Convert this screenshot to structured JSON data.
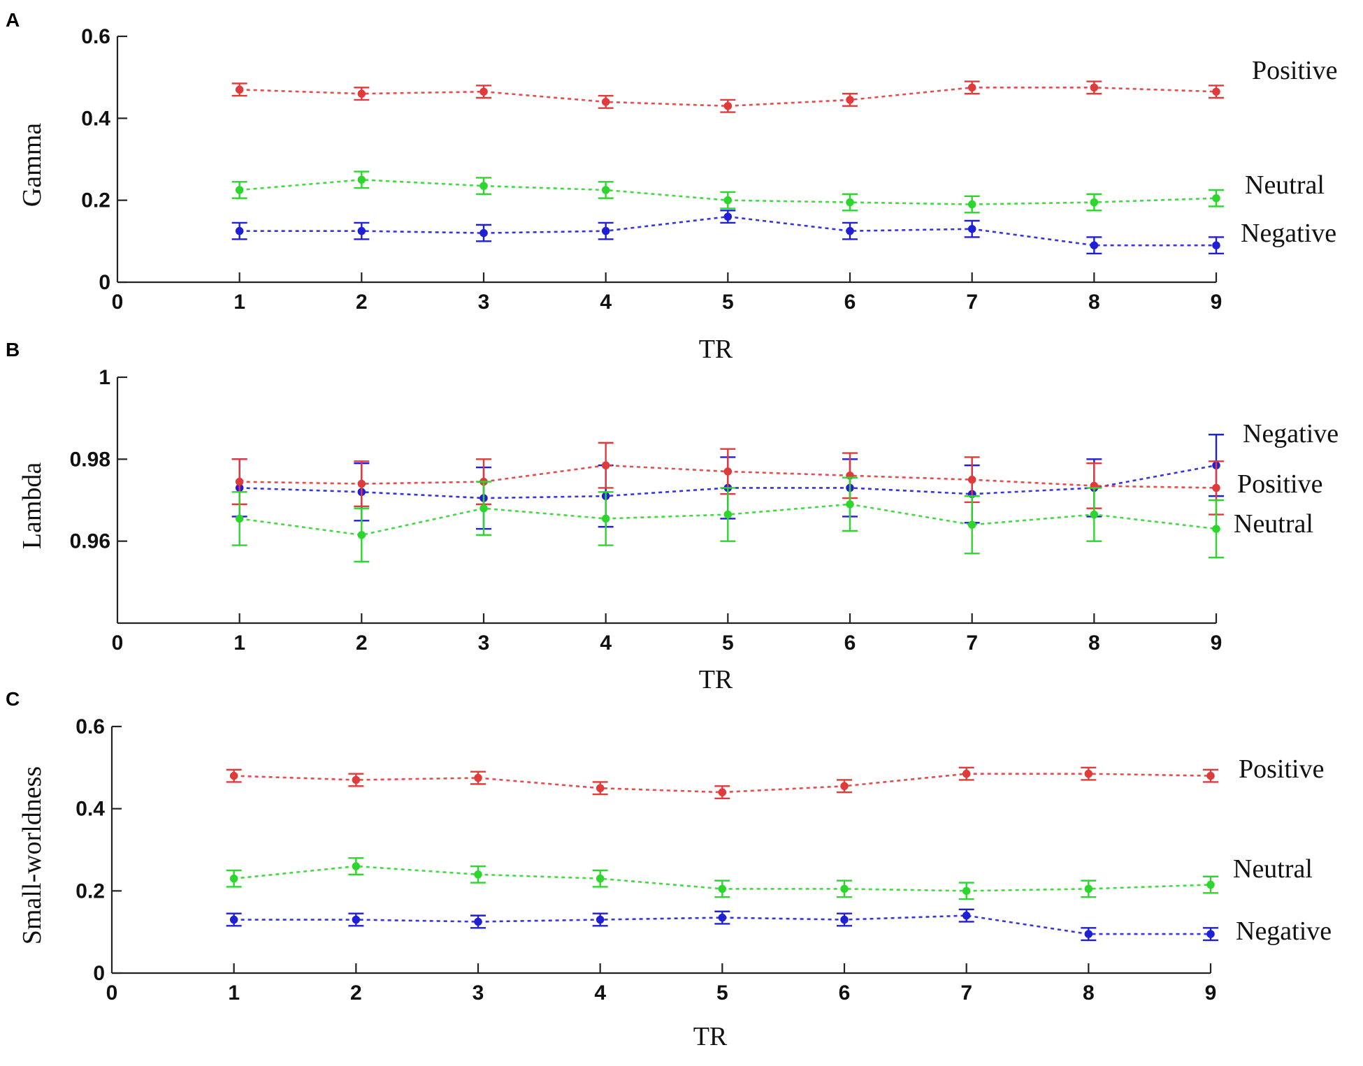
{
  "colors": {
    "Positive": "#e03a3a",
    "Neutral": "#2cd62c",
    "Negative": "#1f1fd6"
  },
  "chart_data": [
    {
      "type": "line",
      "panel": "A",
      "ylabel": "Gamma",
      "xlabel": "TR",
      "xlim": [
        0,
        9
      ],
      "ylim": [
        0,
        0.6
      ],
      "xticks": [
        "0",
        "1",
        "2",
        "3",
        "4",
        "5",
        "6",
        "7",
        "8",
        "9"
      ],
      "yticks": [
        "0",
        "0.2",
        "0.4",
        "0.6"
      ],
      "x": [
        1,
        2,
        3,
        4,
        5,
        6,
        7,
        8,
        9
      ],
      "series": [
        {
          "name": "Positive",
          "values": [
            0.47,
            0.46,
            0.465,
            0.44,
            0.43,
            0.445,
            0.475,
            0.475,
            0.465
          ],
          "errors": [
            0.015,
            0.015,
            0.015,
            0.015,
            0.015,
            0.015,
            0.015,
            0.015,
            0.015
          ]
        },
        {
          "name": "Neutral",
          "values": [
            0.225,
            0.25,
            0.235,
            0.225,
            0.2,
            0.195,
            0.19,
            0.195,
            0.205
          ],
          "errors": [
            0.02,
            0.02,
            0.02,
            0.02,
            0.02,
            0.02,
            0.02,
            0.02,
            0.02
          ]
        },
        {
          "name": "Negative",
          "values": [
            0.125,
            0.125,
            0.12,
            0.125,
            0.16,
            0.125,
            0.13,
            0.09,
            0.09
          ],
          "errors": [
            0.02,
            0.02,
            0.02,
            0.02,
            0.015,
            0.02,
            0.02,
            0.02,
            0.02
          ]
        }
      ]
    },
    {
      "type": "line",
      "panel": "B",
      "ylabel": "Lambda",
      "xlabel": "TR",
      "xlim": [
        0,
        9
      ],
      "ylim": [
        0.94,
        1.0
      ],
      "xticks": [
        "0",
        "1",
        "2",
        "3",
        "4",
        "5",
        "6",
        "7",
        "8",
        "9"
      ],
      "yticks": [
        "0.96",
        "0.98",
        "1"
      ],
      "x": [
        1,
        2,
        3,
        4,
        5,
        6,
        7,
        8,
        9
      ],
      "series": [
        {
          "name": "Negative",
          "values": [
            0.973,
            0.972,
            0.9705,
            0.971,
            0.973,
            0.973,
            0.9715,
            0.973,
            0.9785
          ],
          "errors": [
            0.007,
            0.007,
            0.0075,
            0.0075,
            0.0075,
            0.007,
            0.007,
            0.007,
            0.0075
          ]
        },
        {
          "name": "Positive",
          "values": [
            0.9745,
            0.974,
            0.9745,
            0.9785,
            0.977,
            0.976,
            0.975,
            0.9735,
            0.973
          ],
          "errors": [
            0.0055,
            0.0055,
            0.0055,
            0.0055,
            0.0055,
            0.0055,
            0.0055,
            0.0055,
            0.0065
          ]
        },
        {
          "name": "Neutral",
          "values": [
            0.9655,
            0.9615,
            0.968,
            0.9655,
            0.9665,
            0.969,
            0.964,
            0.9665,
            0.963
          ],
          "errors": [
            0.0065,
            0.0065,
            0.0065,
            0.0065,
            0.0065,
            0.0065,
            0.007,
            0.0065,
            0.007
          ]
        }
      ]
    },
    {
      "type": "line",
      "panel": "C",
      "ylabel": "Small-worldness",
      "xlabel": "TR",
      "xlim": [
        0,
        9
      ],
      "ylim": [
        0,
        0.6
      ],
      "xticks": [
        "0",
        "1",
        "2",
        "3",
        "4",
        "5",
        "6",
        "7",
        "8",
        "9"
      ],
      "yticks": [
        "0",
        "0.2",
        "0.4",
        "0.6"
      ],
      "x": [
        1,
        2,
        3,
        4,
        5,
        6,
        7,
        8,
        9
      ],
      "series": [
        {
          "name": "Positive",
          "values": [
            0.48,
            0.47,
            0.475,
            0.45,
            0.44,
            0.455,
            0.485,
            0.485,
            0.48
          ],
          "errors": [
            0.015,
            0.015,
            0.015,
            0.015,
            0.015,
            0.015,
            0.015,
            0.015,
            0.015
          ]
        },
        {
          "name": "Neutral",
          "values": [
            0.23,
            0.26,
            0.24,
            0.23,
            0.205,
            0.205,
            0.2,
            0.205,
            0.215
          ],
          "errors": [
            0.02,
            0.02,
            0.02,
            0.02,
            0.02,
            0.02,
            0.02,
            0.02,
            0.02
          ]
        },
        {
          "name": "Negative",
          "values": [
            0.13,
            0.13,
            0.125,
            0.13,
            0.135,
            0.13,
            0.14,
            0.095,
            0.095
          ],
          "errors": [
            0.015,
            0.015,
            0.015,
            0.015,
            0.015,
            0.015,
            0.015,
            0.015,
            0.015
          ]
        }
      ]
    }
  ]
}
